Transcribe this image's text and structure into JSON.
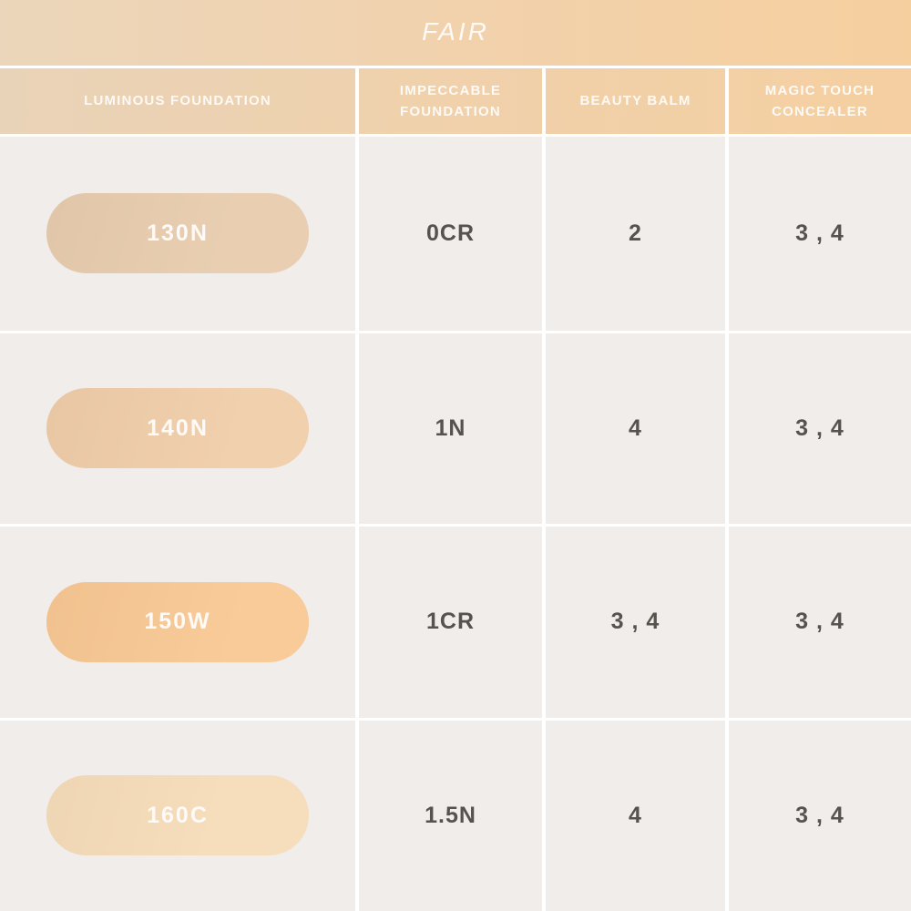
{
  "page_title": "FAIR",
  "chart_data": {
    "type": "table",
    "title": "FAIR",
    "columns": [
      "LUMINOUS FOUNDATION",
      "IMPECCABLE FOUNDATION",
      "BEAUTY BALM",
      "MAGIC TOUCH CONCEALER"
    ],
    "rows": [
      [
        "130N",
        "0CR",
        "2",
        "3 , 4"
      ],
      [
        "140N",
        "1N",
        "4",
        "3 , 4"
      ],
      [
        "150W",
        "1CR",
        "3 , 4",
        "3 , 4"
      ],
      [
        "160C",
        "1.5N",
        "4",
        "3 , 4"
      ]
    ],
    "swatch_colors": [
      "#e8ccae",
      "#f0cda9",
      "#f8c893",
      "#f6dcb9"
    ]
  },
  "colors": {
    "banner_gradient_left": "#ecd6bb",
    "banner_gradient_right": "#f6cf9f",
    "cell_background": "#f0edeb",
    "divider": "#ffffff",
    "value_text": "#56524e",
    "header_text": "#fdfaf6"
  }
}
